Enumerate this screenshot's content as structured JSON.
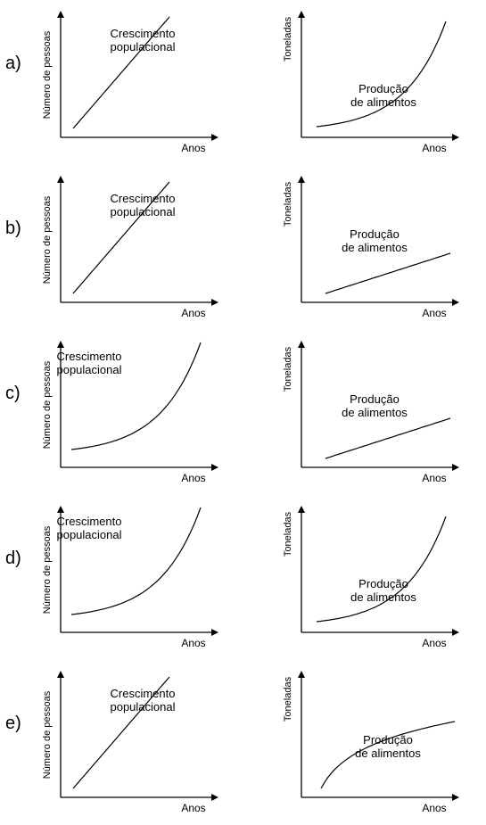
{
  "chart_data": [
    {
      "label": "a)",
      "charts": [
        {
          "type": "line",
          "ylabel": "Número de pessoas",
          "xlabel": "Anos",
          "series": [
            {
              "name": "Crescimento populacional",
              "shape": "linear"
            }
          ]
        },
        {
          "type": "line",
          "ylabel": "Toneladas",
          "xlabel": "Anos",
          "series": [
            {
              "name": "Produção de alimentos",
              "shape": "exponential"
            }
          ]
        }
      ]
    },
    {
      "label": "b)",
      "charts": [
        {
          "type": "line",
          "ylabel": "Número de pessoas",
          "xlabel": "Anos",
          "series": [
            {
              "name": "Crescimento populacional",
              "shape": "linear"
            }
          ]
        },
        {
          "type": "line",
          "ylabel": "Toneladas",
          "xlabel": "Anos",
          "series": [
            {
              "name": "Produção de alimentos",
              "shape": "linear"
            }
          ]
        }
      ]
    },
    {
      "label": "c)",
      "charts": [
        {
          "type": "line",
          "ylabel": "Número de pessoas",
          "xlabel": "Anos",
          "series": [
            {
              "name": "Crescimento populacional",
              "shape": "exponential"
            }
          ]
        },
        {
          "type": "line",
          "ylabel": "Toneladas",
          "xlabel": "Anos",
          "series": [
            {
              "name": "Produção de alimentos",
              "shape": "linear"
            }
          ]
        }
      ]
    },
    {
      "label": "d)",
      "charts": [
        {
          "type": "line",
          "ylabel": "Número de pessoas",
          "xlabel": "Anos",
          "series": [
            {
              "name": "Crescimento populacional",
              "shape": "exponential"
            }
          ]
        },
        {
          "type": "line",
          "ylabel": "Toneladas",
          "xlabel": "Anos",
          "series": [
            {
              "name": "Produção de alimentos",
              "shape": "exponential"
            }
          ]
        }
      ]
    },
    {
      "label": "e)",
      "charts": [
        {
          "type": "line",
          "ylabel": "Número de pessoas",
          "xlabel": "Anos",
          "series": [
            {
              "name": "Crescimento populacional",
              "shape": "linear"
            }
          ]
        },
        {
          "type": "line",
          "ylabel": "Toneladas",
          "xlabel": "Anos",
          "series": [
            {
              "name": "Produção de alimentos",
              "shape": "logarithmic"
            }
          ]
        }
      ]
    }
  ]
}
